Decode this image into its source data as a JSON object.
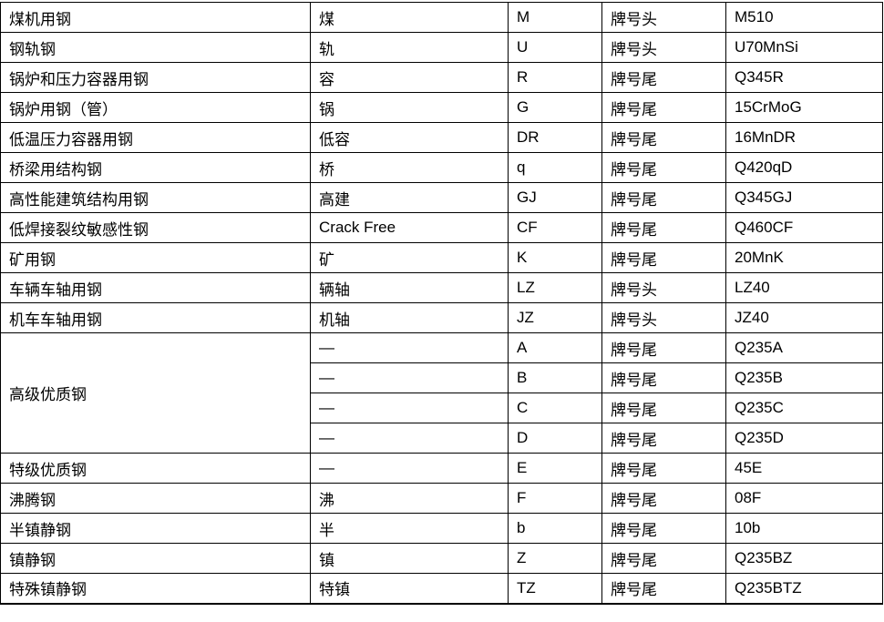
{
  "table": {
    "description": "steel grade naming table",
    "columns": [
      "steel_type",
      "symbol",
      "code",
      "position",
      "example"
    ],
    "text_color": "#000000",
    "border_color": "#000000",
    "background_color": "#ffffff",
    "rows": [
      {
        "type": "煤机用钢",
        "type_rowspan": 1,
        "symbol": "煤",
        "code": "M",
        "position": "牌号头",
        "example": "M510"
      },
      {
        "type": "钢轨钢",
        "type_rowspan": 1,
        "symbol": "轨",
        "code": "U",
        "position": "牌号头",
        "example": "U70MnSi"
      },
      {
        "type": "锅炉和压力容器用钢",
        "type_rowspan": 1,
        "symbol": "容",
        "code": "R",
        "position": "牌号尾",
        "example": "Q345R"
      },
      {
        "type": "锅炉用钢（管）",
        "type_rowspan": 1,
        "symbol": "锅",
        "code": "G",
        "position": "牌号尾",
        "example": "15CrMoG"
      },
      {
        "type": "低温压力容器用钢",
        "type_rowspan": 1,
        "symbol": "低容",
        "code": "DR",
        "position": "牌号尾",
        "example": "16MnDR"
      },
      {
        "type": "桥梁用结构钢",
        "type_rowspan": 1,
        "symbol": "桥",
        "code": "q",
        "position": "牌号尾",
        "example": "Q420qD"
      },
      {
        "type": "高性能建筑结构用钢",
        "type_rowspan": 1,
        "symbol": "高建",
        "code": "GJ",
        "position": "牌号尾",
        "example": "Q345GJ"
      },
      {
        "type": "低焊接裂纹敏感性钢",
        "type_rowspan": 1,
        "symbol": "Crack Free",
        "code": "CF",
        "position": "牌号尾",
        "example": "Q460CF"
      },
      {
        "type": "矿用钢",
        "type_rowspan": 1,
        "symbol": "矿",
        "code": "K",
        "position": "牌号尾",
        "example": "20MnK"
      },
      {
        "type": "车辆车轴用钢",
        "type_rowspan": 1,
        "symbol": "辆轴",
        "code": "LZ",
        "position": "牌号头",
        "example": "LZ40"
      },
      {
        "type": "机车车轴用钢",
        "type_rowspan": 1,
        "symbol": "机轴",
        "code": "JZ",
        "position": "牌号头",
        "example": "JZ40"
      },
      {
        "type": "高级优质钢",
        "type_rowspan": 4,
        "symbol": "—",
        "code": "A",
        "position": "牌号尾",
        "example": "Q235A"
      },
      {
        "type": null,
        "type_rowspan": 0,
        "symbol": "—",
        "code": "B",
        "position": "牌号尾",
        "example": "Q235B"
      },
      {
        "type": null,
        "type_rowspan": 0,
        "symbol": "—",
        "code": "C",
        "position": "牌号尾",
        "example": "Q235C"
      },
      {
        "type": null,
        "type_rowspan": 0,
        "symbol": "—",
        "code": "D",
        "position": "牌号尾",
        "example": "Q235D"
      },
      {
        "type": "特级优质钢",
        "type_rowspan": 1,
        "symbol": "—",
        "code": "E",
        "position": "牌号尾",
        "example": "45E"
      },
      {
        "type": "沸腾钢",
        "type_rowspan": 1,
        "symbol": "沸",
        "code": "F",
        "position": "牌号尾",
        "example": "08F"
      },
      {
        "type": "半镇静钢",
        "type_rowspan": 1,
        "symbol": "半",
        "code": "b",
        "position": "牌号尾",
        "example": "10b"
      },
      {
        "type": "镇静钢",
        "type_rowspan": 1,
        "symbol": "镇",
        "code": "Z",
        "position": "牌号尾",
        "example": "Q235BZ"
      },
      {
        "type": "特殊镇静钢",
        "type_rowspan": 1,
        "symbol": "特镇",
        "code": "TZ",
        "position": "牌号尾",
        "example": "Q235BTZ"
      }
    ]
  }
}
